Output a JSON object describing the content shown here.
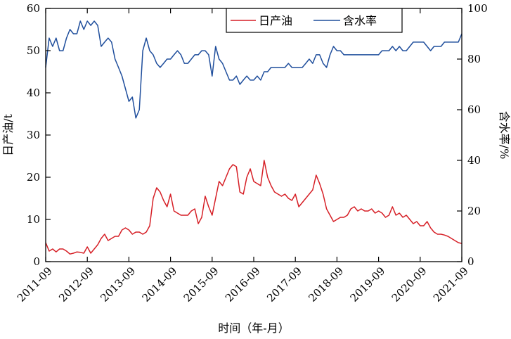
{
  "chart_data": {
    "type": "line",
    "xlabel": "时间（年-月）",
    "ylabel_left": "日产油/t",
    "ylabel_right": "含水率/%",
    "x_ticks": [
      "2011-09",
      "2012-09",
      "2013-09",
      "2014-09",
      "2015-09",
      "2016-09",
      "2017-09",
      "2018-09",
      "2019-09",
      "2020-09",
      "2021-09"
    ],
    "y_left_ticks": [
      "0",
      "10",
      "20",
      "30",
      "40",
      "50",
      "60"
    ],
    "y_right_ticks": [
      "0",
      "20",
      "40",
      "60",
      "80",
      "100"
    ],
    "ylim_left": [
      0,
      60
    ],
    "ylim_right": [
      0,
      100
    ],
    "xlim_months": [
      0,
      120
    ],
    "legend_position": "top-right",
    "colors": {
      "oil": "#d61f26",
      "water": "#1f4e9c"
    },
    "series": [
      {
        "name": "日产油",
        "axis": "left",
        "color": "#d61f26",
        "x": [
          0,
          1,
          2,
          3,
          4,
          5,
          6,
          7,
          8,
          9,
          10,
          11,
          12,
          13,
          14,
          15,
          16,
          17,
          18,
          19,
          20,
          21,
          22,
          23,
          24,
          25,
          26,
          27,
          28,
          29,
          30,
          31,
          32,
          33,
          34,
          35,
          36,
          37,
          38,
          39,
          40,
          41,
          42,
          43,
          44,
          45,
          46,
          47,
          48,
          49,
          50,
          51,
          52,
          53,
          54,
          55,
          56,
          57,
          58,
          59,
          60,
          61,
          62,
          63,
          64,
          65,
          66,
          67,
          68,
          69,
          70,
          71,
          72,
          73,
          74,
          75,
          76,
          77,
          78,
          79,
          80,
          81,
          82,
          83,
          84,
          85,
          86,
          87,
          88,
          89,
          90,
          91,
          92,
          93,
          94,
          95,
          96,
          97,
          98,
          99,
          100,
          101,
          102,
          103,
          104,
          105,
          106,
          107,
          108,
          109,
          110,
          111,
          112,
          113,
          114,
          115,
          116,
          117,
          118,
          119,
          120
        ],
        "y": [
          4.5,
          2.5,
          3.0,
          2.3,
          3.0,
          3.0,
          2.5,
          1.8,
          2.0,
          2.3,
          2.2,
          2.0,
          3.5,
          2.0,
          3.0,
          4.0,
          5.5,
          6.5,
          5.0,
          5.5,
          6.0,
          6.0,
          7.5,
          8.0,
          7.5,
          6.5,
          7.0,
          7.0,
          6.5,
          7.0,
          8.5,
          15.0,
          17.5,
          16.5,
          14.5,
          13.0,
          16.0,
          12.0,
          11.5,
          11.0,
          11.0,
          11.0,
          12.0,
          12.5,
          9.0,
          10.5,
          15.5,
          13.0,
          11.0,
          15.0,
          19.0,
          18.0,
          20.0,
          22.0,
          23.0,
          22.5,
          16.5,
          16.0,
          20.0,
          22.0,
          19.0,
          18.5,
          18.0,
          24.0,
          20.0,
          18.0,
          16.5,
          16.0,
          15.5,
          16.0,
          15.0,
          14.5,
          16.0,
          13.0,
          14.0,
          15.0,
          16.0,
          17.0,
          20.5,
          18.5,
          16.0,
          12.5,
          11.0,
          9.5,
          10.0,
          10.5,
          10.5,
          11.0,
          12.5,
          13.0,
          12.0,
          12.5,
          12.0,
          12.0,
          12.5,
          11.5,
          12.0,
          11.5,
          10.5,
          11.0,
          13.0,
          11.0,
          11.5,
          10.5,
          11.0,
          10.0,
          9.0,
          9.5,
          8.5,
          8.5,
          9.5,
          8.0,
          7.0,
          6.5,
          6.5,
          6.3,
          6.0,
          5.5,
          5.0,
          4.5,
          4.3
        ]
      },
      {
        "name": "含水率",
        "axis": "right",
        "color": "#1f4e9c",
        "x": [
          0,
          1,
          2,
          3,
          4,
          5,
          6,
          7,
          8,
          9,
          10,
          11,
          12,
          13,
          14,
          15,
          16,
          17,
          18,
          19,
          20,
          21,
          22,
          23,
          24,
          25,
          26,
          27,
          28,
          29,
          30,
          31,
          32,
          33,
          34,
          35,
          36,
          37,
          38,
          39,
          40,
          41,
          42,
          43,
          44,
          45,
          46,
          47,
          48,
          49,
          50,
          51,
          52,
          53,
          54,
          55,
          56,
          57,
          58,
          59,
          60,
          61,
          62,
          63,
          64,
          65,
          66,
          67,
          68,
          69,
          70,
          71,
          72,
          73,
          74,
          75,
          76,
          77,
          78,
          79,
          80,
          81,
          82,
          83,
          84,
          85,
          86,
          87,
          88,
          89,
          90,
          91,
          92,
          93,
          94,
          95,
          96,
          97,
          98,
          99,
          100,
          101,
          102,
          103,
          104,
          105,
          106,
          107,
          108,
          109,
          110,
          111,
          112,
          113,
          114,
          115,
          116,
          117,
          118,
          119,
          120
        ],
        "y": [
          76.7,
          88.3,
          85.0,
          88.3,
          83.3,
          83.3,
          88.3,
          91.7,
          90.0,
          90.0,
          95.0,
          91.7,
          95.0,
          93.3,
          95.0,
          93.3,
          85.0,
          86.7,
          88.3,
          86.7,
          80.0,
          76.7,
          73.3,
          68.3,
          63.3,
          65.0,
          56.7,
          60.0,
          83.3,
          88.3,
          83.3,
          81.7,
          78.3,
          76.7,
          78.3,
          80.0,
          80.0,
          81.7,
          83.3,
          81.7,
          78.3,
          78.3,
          80.0,
          81.7,
          81.7,
          83.3,
          83.3,
          81.7,
          73.3,
          85.0,
          80.0,
          78.3,
          75.0,
          71.7,
          71.7,
          73.3,
          70.0,
          71.7,
          73.3,
          71.7,
          71.7,
          73.3,
          71.7,
          75.0,
          75.0,
          76.7,
          76.7,
          76.7,
          76.7,
          76.7,
          78.3,
          76.7,
          76.7,
          76.7,
          76.7,
          78.3,
          80.0,
          78.3,
          81.7,
          81.7,
          78.3,
          76.7,
          81.7,
          85.0,
          83.3,
          83.3,
          81.7,
          81.7,
          81.7,
          81.7,
          81.7,
          81.7,
          81.7,
          81.7,
          81.7,
          81.7,
          81.7,
          83.3,
          83.3,
          83.3,
          85.0,
          83.3,
          85.0,
          83.3,
          83.3,
          85.0,
          86.7,
          86.7,
          86.7,
          86.7,
          85.0,
          83.3,
          85.0,
          85.0,
          85.0,
          86.7,
          86.7,
          86.7,
          86.7,
          86.7,
          90.0
        ]
      }
    ]
  }
}
